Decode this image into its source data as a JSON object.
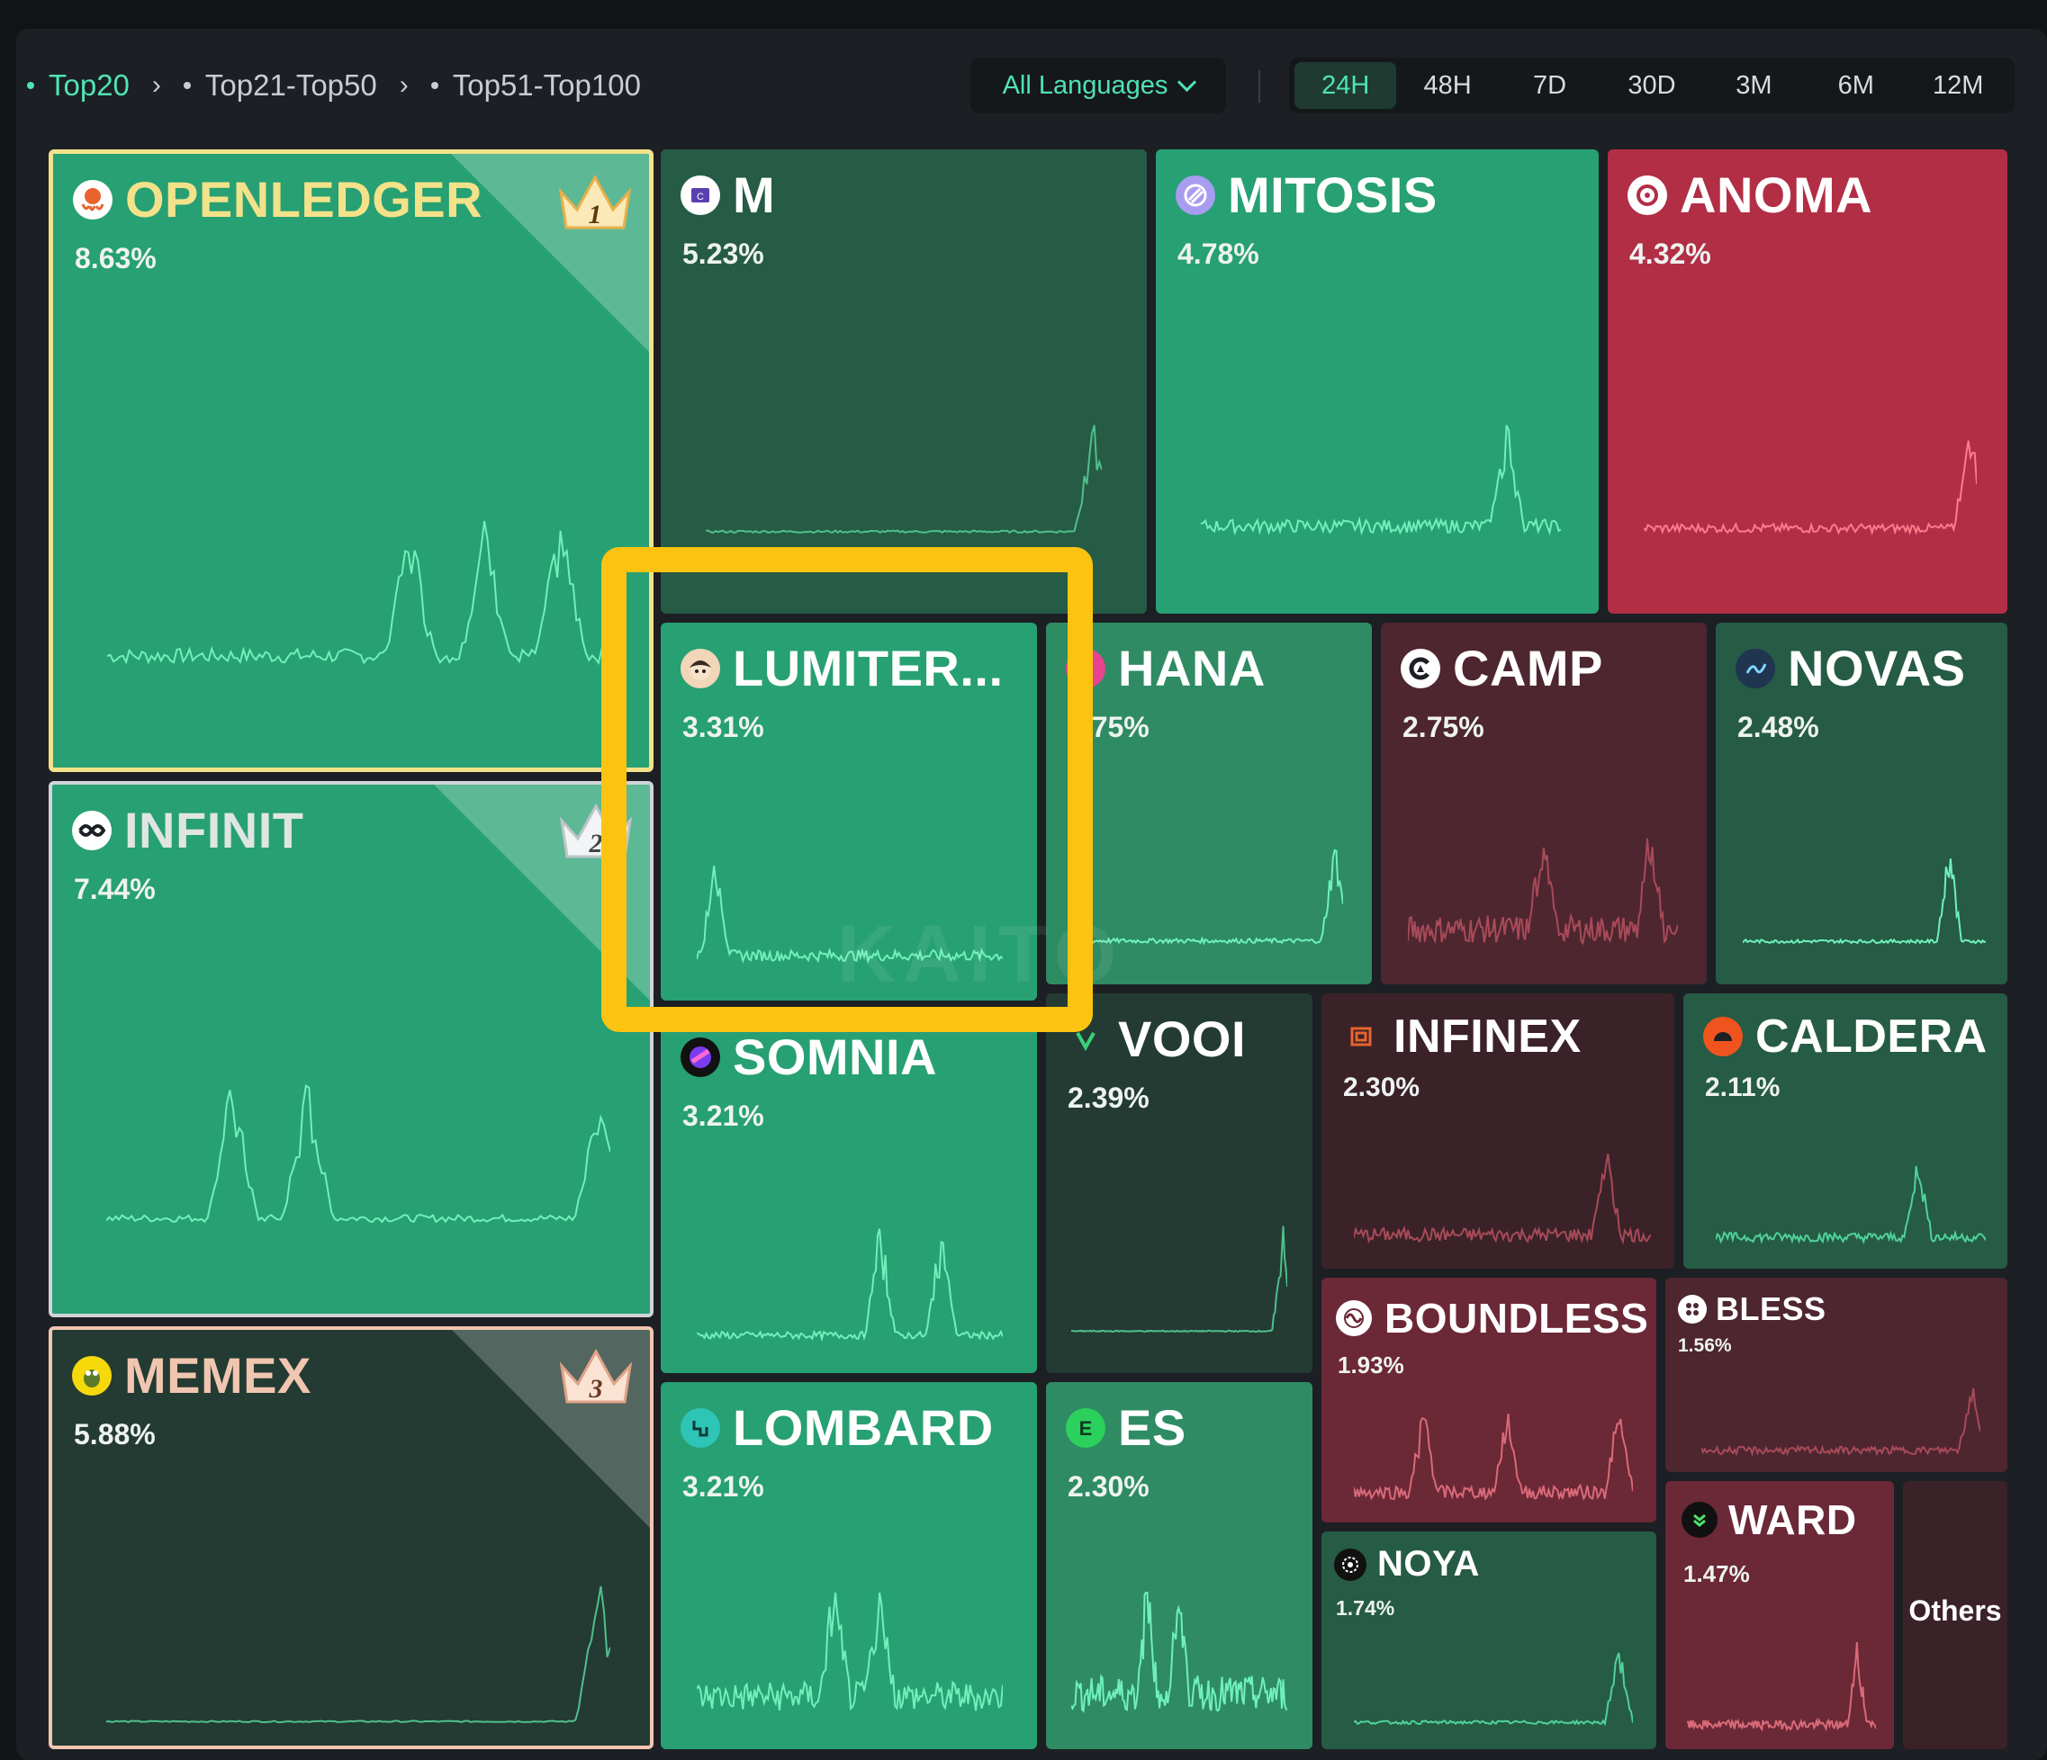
{
  "breadcrumbs": [
    {
      "label": "Top20",
      "active": true
    },
    {
      "label": "Top21-Top50",
      "active": false
    },
    {
      "label": "Top51-Top100",
      "active": false
    }
  ],
  "language_filter": {
    "label": "All Languages"
  },
  "time_ranges": [
    {
      "label": "24H",
      "active": true
    },
    {
      "label": "48H",
      "active": false
    },
    {
      "label": "7D",
      "active": false
    },
    {
      "label": "30D",
      "active": false
    },
    {
      "label": "3M",
      "active": false
    },
    {
      "label": "6M",
      "active": false
    },
    {
      "label": "12M",
      "active": false
    }
  ],
  "watermark": "KAITO",
  "tiles": [
    {
      "id": "openledger",
      "name": "OPENLEDGER",
      "pct": "8.63%",
      "rank": "1",
      "color": "#27a073",
      "logo_color": "#e8642c",
      "icon": "octopus-icon"
    },
    {
      "id": "infinit",
      "name": "INFINIT",
      "pct": "7.44%",
      "rank": "2",
      "color": "#27a073",
      "logo_color": "#ffffff",
      "icon": "infinity-icon"
    },
    {
      "id": "memex",
      "name": "MEMEX",
      "pct": "5.88%",
      "rank": "3",
      "color": "#233b33",
      "logo_color": "#f5d90a",
      "icon": "frog-icon"
    },
    {
      "id": "m",
      "name": "M",
      "pct": "5.23%",
      "color": "#265b45",
      "logo_color": "#ffffff",
      "icon": "m-logo-icon"
    },
    {
      "id": "mitosis",
      "name": "MITOSIS",
      "pct": "4.78%",
      "color": "#27a073",
      "logo_color": "#a89cf0",
      "icon": "mitosis-icon"
    },
    {
      "id": "anoma",
      "name": "ANOMA",
      "pct": "4.32%",
      "color": "#b12e45",
      "logo_color": "#ffffff",
      "icon": "anoma-icon"
    },
    {
      "id": "lumiterra",
      "name": "LUMITER...",
      "pct": "3.31%",
      "color": "#27a073",
      "logo_color": "#e8b47a",
      "icon": "avatar-icon"
    },
    {
      "id": "hana",
      "name": "HANA",
      "pct": "2.75%",
      "color": "#2e8b63",
      "logo_color": "#e84393",
      "icon": "hana-icon"
    },
    {
      "id": "camp",
      "name": "CAMP",
      "pct": "2.75%",
      "color": "#4d2630",
      "logo_color": "#ffffff",
      "icon": "camp-icon"
    },
    {
      "id": "novas",
      "name": "NOVAS",
      "pct": "2.48%",
      "color": "#265b45",
      "logo_color": "#1f3550",
      "icon": "novas-icon"
    },
    {
      "id": "somnia",
      "name": "SOMNIA",
      "pct": "3.21%",
      "color": "#27a073",
      "logo_color": "#7b3cf0",
      "icon": "somnia-icon"
    },
    {
      "id": "vooi",
      "name": "VOOI",
      "pct": "2.39%",
      "color": "#233b33",
      "logo_color": "#3ad07a",
      "icon": "vooi-icon"
    },
    {
      "id": "infinex",
      "name": "INFINEX",
      "pct": "2.30%",
      "color": "#3a2228",
      "logo_color": "#e8642c",
      "icon": "infinex-icon"
    },
    {
      "id": "caldera",
      "name": "CALDERA",
      "pct": "2.11%",
      "color": "#265b45",
      "logo_color": "#f0541e",
      "icon": "caldera-icon"
    },
    {
      "id": "lombard",
      "name": "LOMBARD",
      "pct": "3.21%",
      "color": "#27a073",
      "logo_color": "#2ec4b6",
      "icon": "lombard-icon"
    },
    {
      "id": "es",
      "name": "ES",
      "pct": "2.30%",
      "color": "#2e8b63",
      "logo_color": "#2bd15c",
      "icon": "es-icon"
    },
    {
      "id": "boundless",
      "name": "BOUNDLESS",
      "pct": "1.93%",
      "color": "#6b2836",
      "logo_color": "#ffffff",
      "icon": "boundless-icon"
    },
    {
      "id": "bless",
      "name": "BLESS",
      "pct": "1.56%",
      "color": "#4d2630",
      "logo_color": "#ffffff",
      "icon": "bless-icon"
    },
    {
      "id": "noya",
      "name": "NOYA",
      "pct": "1.74%",
      "color": "#265b45",
      "logo_color": "#111111",
      "icon": "noya-icon"
    },
    {
      "id": "ward",
      "name": "WARD",
      "pct": "1.47%",
      "color": "#6b2836",
      "logo_color": "#111111",
      "icon": "ward-icon"
    },
    {
      "id": "others",
      "name": "Others",
      "pct": "",
      "color": "#3a2228",
      "icon": ""
    }
  ],
  "colors": {
    "accent": "#4fe3b5",
    "highlight": "#fcc410",
    "gain": "#27a073",
    "loss": "#b12e45"
  }
}
